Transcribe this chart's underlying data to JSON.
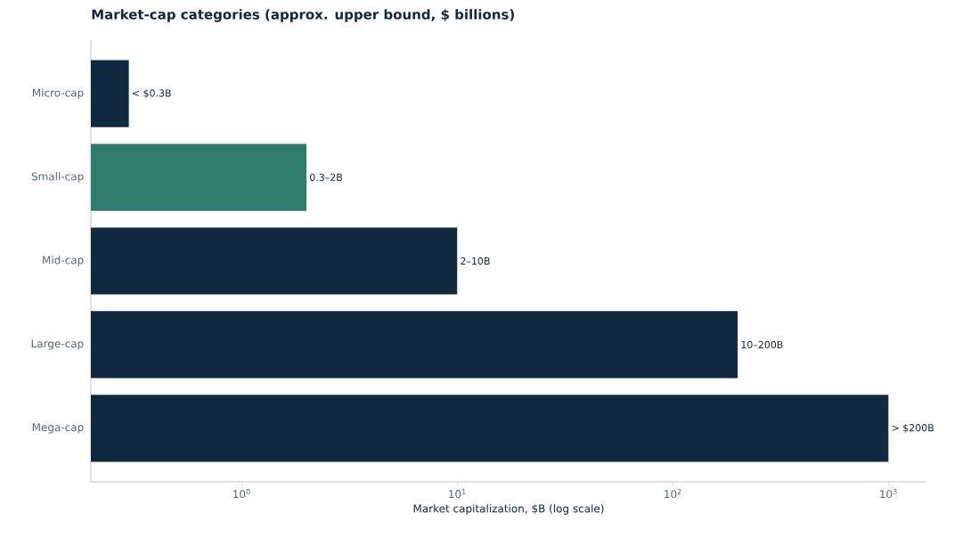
{
  "chart_data": {
    "type": "bar",
    "orientation": "horizontal",
    "title": "Market-cap categories (approx. upper bound, $ billions)",
    "xlabel": "Market capitalization, $B (log scale)",
    "categories": [
      "Micro-cap",
      "Small-cap",
      "Mid-cap",
      "Large-cap",
      "Mega-cap"
    ],
    "values": [
      0.3,
      2,
      10,
      200,
      1000
    ],
    "colors": [
      "#10293f",
      "#2e7d6b",
      "#10293f",
      "#10293f",
      "#10293f"
    ],
    "value_labels": [
      "< $0.3B",
      "0.3–2B",
      "2–10B",
      "10–200B",
      "> $200B"
    ],
    "log": "x",
    "xlim": [
      0.2,
      1500
    ],
    "xticks": [
      {
        "value": 1,
        "label": "10$^{0}$"
      },
      {
        "value": 10,
        "label": "10$^{1}$"
      },
      {
        "value": 100,
        "label": "10$^{2}$"
      },
      {
        "value": 1000,
        "label": "10$^{3}$"
      }
    ]
  }
}
